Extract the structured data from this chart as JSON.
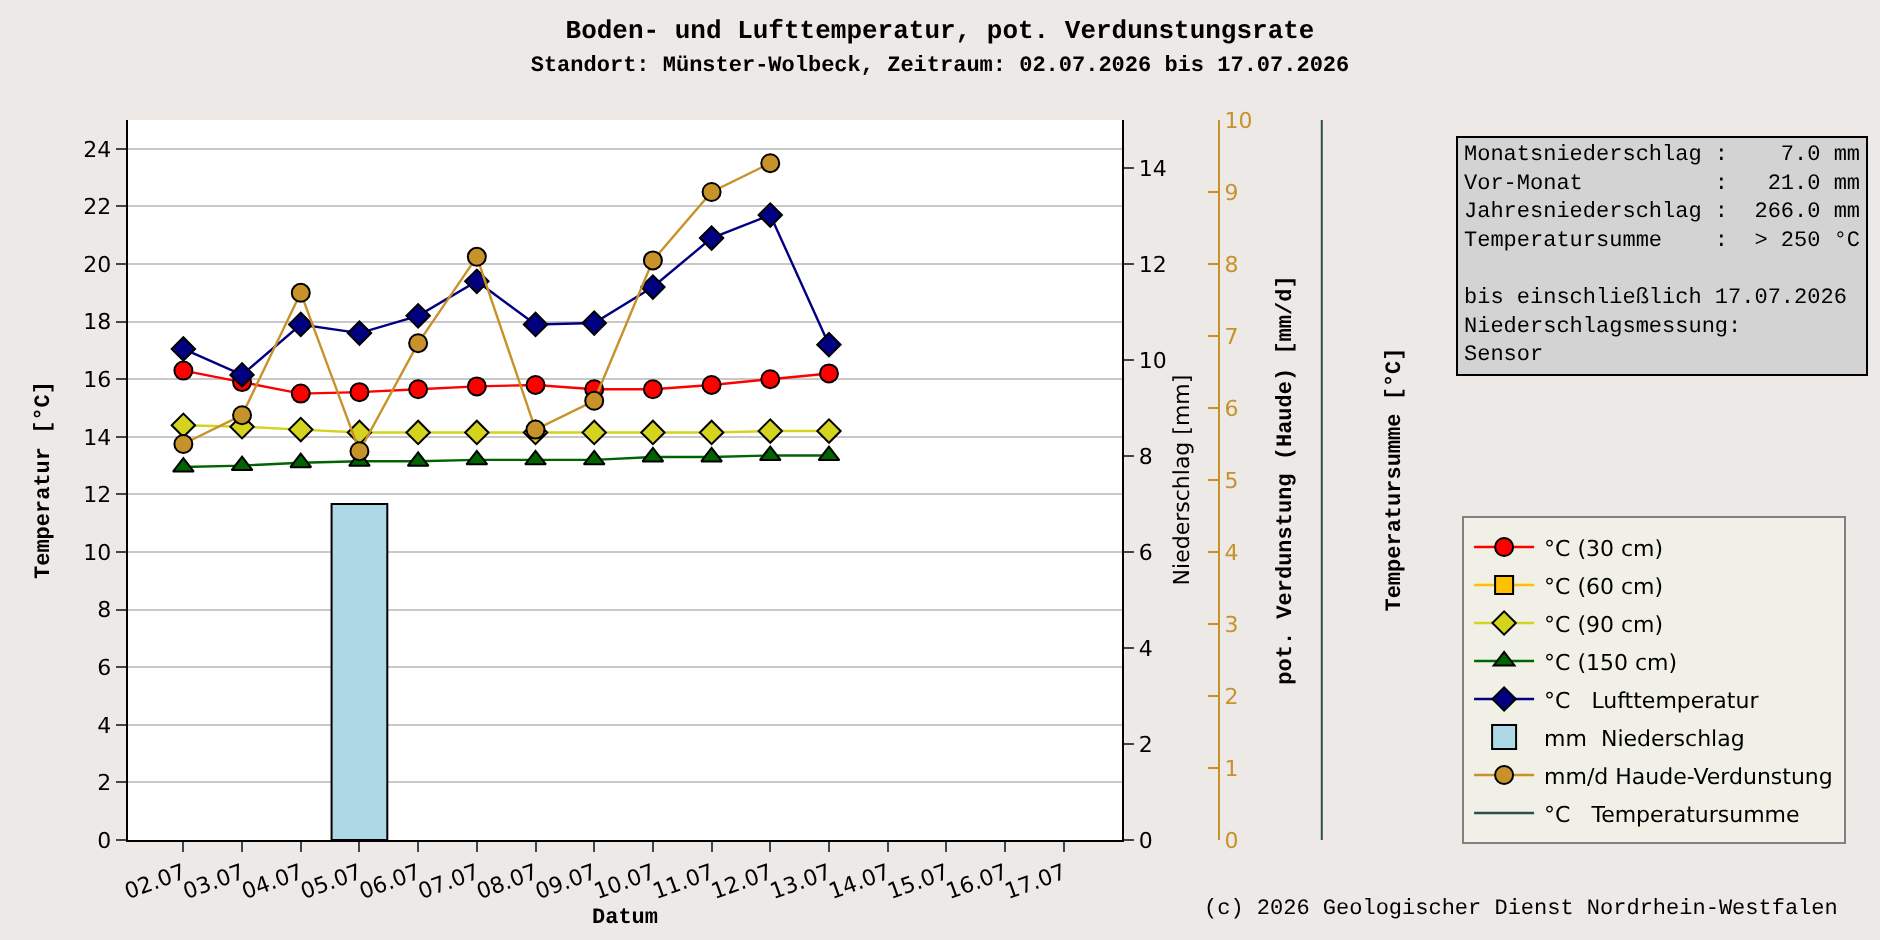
{
  "chart_data": {
    "type": "line",
    "title": "Boden- und Lufttemperatur, pot. Verdunstungsrate",
    "subtitle": "Standort: Münster-Wolbeck, Zeitraum: 02.07.2026 bis 17.07.2026",
    "xlabel": "Datum",
    "ylabel": "Temperatur [°C]",
    "y2label": "Niederschlag [mm]",
    "y3label": "pot. Verdunstung (Haude) [mm/d]",
    "categories": [
      "02.07",
      "03.07",
      "04.07",
      "05.07",
      "06.07",
      "07.07",
      "08.07",
      "09.07",
      "10.07",
      "11.07",
      "12.07",
      "13.07",
      "14.07",
      "15.07",
      "16.07",
      "17.07"
    ],
    "series": [
      {
        "name": "°C (30 cm)",
        "marker": "circle",
        "color": "#ff0000",
        "values": [
          16.3,
          15.9,
          15.5,
          15.55,
          15.65,
          15.75,
          15.8,
          15.65,
          15.65,
          15.8,
          16.0,
          16.2,
          null,
          null,
          null,
          null
        ]
      },
      {
        "name": "°C (60 cm)",
        "marker": "square",
        "color": "#ffc000",
        "values": [
          null,
          null,
          null,
          null,
          null,
          null,
          null,
          null,
          null,
          null,
          null,
          null,
          null,
          null,
          null,
          null
        ]
      },
      {
        "name": "°C (90 cm)",
        "marker": "diamond",
        "color": "#d4d41e",
        "values": [
          14.4,
          14.35,
          14.25,
          14.15,
          14.15,
          14.15,
          14.15,
          14.15,
          14.15,
          14.15,
          14.2,
          14.2,
          null,
          null,
          null,
          null
        ]
      },
      {
        "name": "°C (150 cm)",
        "marker": "triangle",
        "color": "#006400",
        "values": [
          12.95,
          13.0,
          13.1,
          13.15,
          13.15,
          13.2,
          13.2,
          13.2,
          13.3,
          13.3,
          13.35,
          13.35,
          null,
          null,
          null,
          null
        ]
      },
      {
        "name": "°C   Lufttemperatur",
        "marker": "diamond",
        "color": "#000080",
        "values": [
          17.05,
          16.15,
          17.9,
          17.6,
          18.2,
          19.4,
          17.9,
          17.95,
          19.2,
          20.9,
          21.7,
          17.2,
          null,
          null,
          null,
          null
        ]
      },
      {
        "name": "mm  Niederschlag",
        "type": "bar",
        "axis": "y2",
        "color": "#add8e6",
        "values": [
          null,
          null,
          null,
          7.0,
          null,
          null,
          null,
          null,
          null,
          null,
          null,
          null,
          null,
          null,
          null,
          null
        ]
      },
      {
        "name": "mm/d Haude-Verdunstung",
        "axis": "y3",
        "marker": "circle",
        "color": "#c8922a",
        "values": [
          5.5,
          5.9,
          7.6,
          5.4,
          6.9,
          8.1,
          5.7,
          6.1,
          8.05,
          9.0,
          9.4,
          null,
          null,
          null,
          null,
          null
        ]
      },
      {
        "name": "°C   Temperatursumme",
        "marker": "none",
        "color": "#2f4f4f",
        "values": [
          null,
          null,
          null,
          null,
          null,
          null,
          null,
          null,
          null,
          null,
          null,
          null,
          null,
          null,
          null,
          null
        ]
      }
    ],
    "ylim": [
      0,
      25
    ],
    "yticks": [
      0,
      2,
      4,
      6,
      8,
      10,
      12,
      14,
      16,
      18,
      20,
      22,
      24
    ],
    "y2lim": [
      0,
      15
    ],
    "y2ticks": [
      0,
      2,
      4,
      6,
      8,
      10,
      12,
      14
    ],
    "y3lim": [
      0,
      10
    ],
    "y3ticks": [
      0,
      1,
      2,
      3,
      4,
      5,
      6,
      7,
      8,
      9,
      10
    ],
    "grid": "y",
    "legend": "right",
    "annotations": [
      "Monatsniederschlag :    7.0 mm",
      "Vor-Monat          :   21.0 mm",
      "Jahresniederschlag :  266.0 mm",
      "Temperatursumme    :  > 250 °C",
      "bis einschließlich 17.07.2026",
      "Niederschlagsmessung:",
      "Sensor",
      "(c) 2026 Geologischer Dienst Nordrhein-Westfalen",
      "Temperatursumme [°C]"
    ]
  }
}
